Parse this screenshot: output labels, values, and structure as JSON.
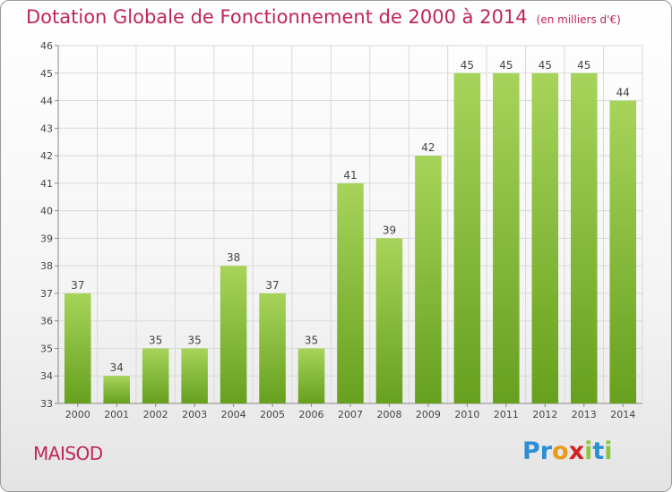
{
  "title": "Dotation Globale de Fonctionnement de 2000 à 2014",
  "unit": "(en milliers d'€)",
  "town": "MAISOD",
  "logo": {
    "letters": [
      "P",
      "r",
      "o",
      "x",
      "i",
      "t",
      "i"
    ],
    "colors": [
      "#2b8fd6",
      "#2b8fd6",
      "#e89a1a",
      "#d62020",
      "#8cc63f",
      "#2b8fd6",
      "#8cc63f"
    ]
  },
  "colors": {
    "bar_light": "#a6d45a",
    "bar_dark": "#67a01e",
    "title": "#c0245c",
    "grid": "#d9d9d9"
  },
  "chart_data": {
    "type": "bar",
    "categories": [
      "2000",
      "2001",
      "2002",
      "2003",
      "2004",
      "2005",
      "2006",
      "2007",
      "2008",
      "2009",
      "2010",
      "2011",
      "2012",
      "2013",
      "2014"
    ],
    "values": [
      37,
      34,
      35,
      35,
      38,
      37,
      35,
      41,
      39,
      42,
      45,
      45,
      45,
      45,
      44
    ],
    "yticks": [
      33,
      34,
      35,
      36,
      37,
      38,
      39,
      40,
      41,
      42,
      43,
      44,
      45,
      46
    ],
    "ylim": [
      33,
      46
    ],
    "grid": true,
    "data_labels": true
  }
}
